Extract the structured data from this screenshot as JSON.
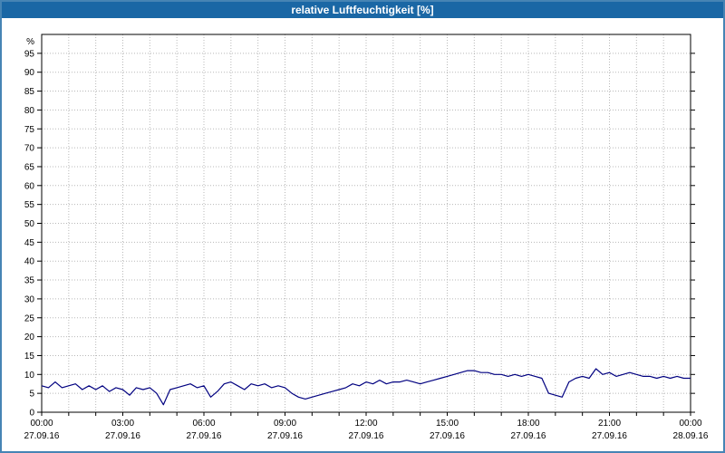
{
  "title": "relative Luftfeuchtigkeit [%]",
  "colors": {
    "titlebar_bg": "#1a67a5",
    "frame_border": "#4684b4",
    "line": "#000080",
    "grid": "#b8b8b8",
    "axis": "#000000"
  },
  "chart_data": {
    "type": "line",
    "title": "relative Luftfeuchtigkeit [%]",
    "ylabel": "%",
    "xlabel": "",
    "ylim": [
      0,
      100
    ],
    "x_hours_range": [
      0,
      24
    ],
    "grid": true,
    "legend": "none",
    "yticks": [
      0,
      5,
      10,
      15,
      20,
      25,
      30,
      35,
      40,
      45,
      50,
      55,
      60,
      65,
      70,
      75,
      80,
      85,
      90,
      95
    ],
    "xticks": [
      {
        "hour": 0,
        "time": "00:00",
        "date": "27.09.16"
      },
      {
        "hour": 3,
        "time": "03:00",
        "date": "27.09.16"
      },
      {
        "hour": 6,
        "time": "06:00",
        "date": "27.09.16"
      },
      {
        "hour": 9,
        "time": "09:00",
        "date": "27.09.16"
      },
      {
        "hour": 12,
        "time": "12:00",
        "date": "27.09.16"
      },
      {
        "hour": 15,
        "time": "15:00",
        "date": "27.09.16"
      },
      {
        "hour": 18,
        "time": "18:00",
        "date": "27.09.16"
      },
      {
        "hour": 21,
        "time": "21:00",
        "date": "27.09.16"
      },
      {
        "hour": 24,
        "time": "00:00",
        "date": "28.09.16"
      }
    ],
    "series": [
      {
        "name": "relative Luftfeuchtigkeit",
        "color": "#000080",
        "points": [
          [
            0.0,
            7
          ],
          [
            0.25,
            6.5
          ],
          [
            0.5,
            8
          ],
          [
            0.75,
            6.5
          ],
          [
            1.0,
            7
          ],
          [
            1.25,
            7.5
          ],
          [
            1.5,
            6
          ],
          [
            1.75,
            7
          ],
          [
            2.0,
            6
          ],
          [
            2.25,
            7
          ],
          [
            2.5,
            5.5
          ],
          [
            2.75,
            6.5
          ],
          [
            3.0,
            6
          ],
          [
            3.25,
            4.5
          ],
          [
            3.5,
            6.5
          ],
          [
            3.75,
            6
          ],
          [
            4.0,
            6.5
          ],
          [
            4.25,
            5
          ],
          [
            4.5,
            2
          ],
          [
            4.75,
            6
          ],
          [
            5.0,
            6.5
          ],
          [
            5.25,
            7
          ],
          [
            5.5,
            7.5
          ],
          [
            5.75,
            6.5
          ],
          [
            6.0,
            7
          ],
          [
            6.25,
            4
          ],
          [
            6.5,
            5.5
          ],
          [
            6.75,
            7.5
          ],
          [
            7.0,
            8
          ],
          [
            7.25,
            7
          ],
          [
            7.5,
            6
          ],
          [
            7.75,
            7.5
          ],
          [
            8.0,
            7
          ],
          [
            8.25,
            7.5
          ],
          [
            8.5,
            6.5
          ],
          [
            8.75,
            7
          ],
          [
            9.0,
            6.5
          ],
          [
            9.25,
            5
          ],
          [
            9.5,
            4
          ],
          [
            9.75,
            3.5
          ],
          [
            10.0,
            4
          ],
          [
            10.25,
            4.5
          ],
          [
            10.5,
            5
          ],
          [
            10.75,
            5.5
          ],
          [
            11.0,
            6
          ],
          [
            11.25,
            6.5
          ],
          [
            11.5,
            7.5
          ],
          [
            11.75,
            7
          ],
          [
            12.0,
            8
          ],
          [
            12.25,
            7.5
          ],
          [
            12.5,
            8.5
          ],
          [
            12.75,
            7.5
          ],
          [
            13.0,
            8
          ],
          [
            13.25,
            8
          ],
          [
            13.5,
            8.5
          ],
          [
            13.75,
            8
          ],
          [
            14.0,
            7.5
          ],
          [
            14.25,
            8
          ],
          [
            14.5,
            8.5
          ],
          [
            14.75,
            9
          ],
          [
            15.0,
            9.5
          ],
          [
            15.25,
            10
          ],
          [
            15.5,
            10.5
          ],
          [
            15.75,
            11
          ],
          [
            16.0,
            11
          ],
          [
            16.25,
            10.5
          ],
          [
            16.5,
            10.5
          ],
          [
            16.75,
            10
          ],
          [
            17.0,
            10
          ],
          [
            17.25,
            9.5
          ],
          [
            17.5,
            10
          ],
          [
            17.75,
            9.5
          ],
          [
            18.0,
            10
          ],
          [
            18.25,
            9.5
          ],
          [
            18.5,
            9
          ],
          [
            18.75,
            5
          ],
          [
            19.0,
            4.5
          ],
          [
            19.25,
            4
          ],
          [
            19.5,
            8
          ],
          [
            19.75,
            9
          ],
          [
            20.0,
            9.5
          ],
          [
            20.25,
            9
          ],
          [
            20.5,
            11.5
          ],
          [
            20.75,
            10
          ],
          [
            21.0,
            10.5
          ],
          [
            21.25,
            9.5
          ],
          [
            21.5,
            10
          ],
          [
            21.75,
            10.5
          ],
          [
            22.0,
            10
          ],
          [
            22.25,
            9.5
          ],
          [
            22.5,
            9.5
          ],
          [
            22.75,
            9
          ],
          [
            23.0,
            9.5
          ],
          [
            23.25,
            9
          ],
          [
            23.5,
            9.5
          ],
          [
            23.75,
            9
          ],
          [
            24.0,
            9
          ]
        ]
      }
    ]
  }
}
